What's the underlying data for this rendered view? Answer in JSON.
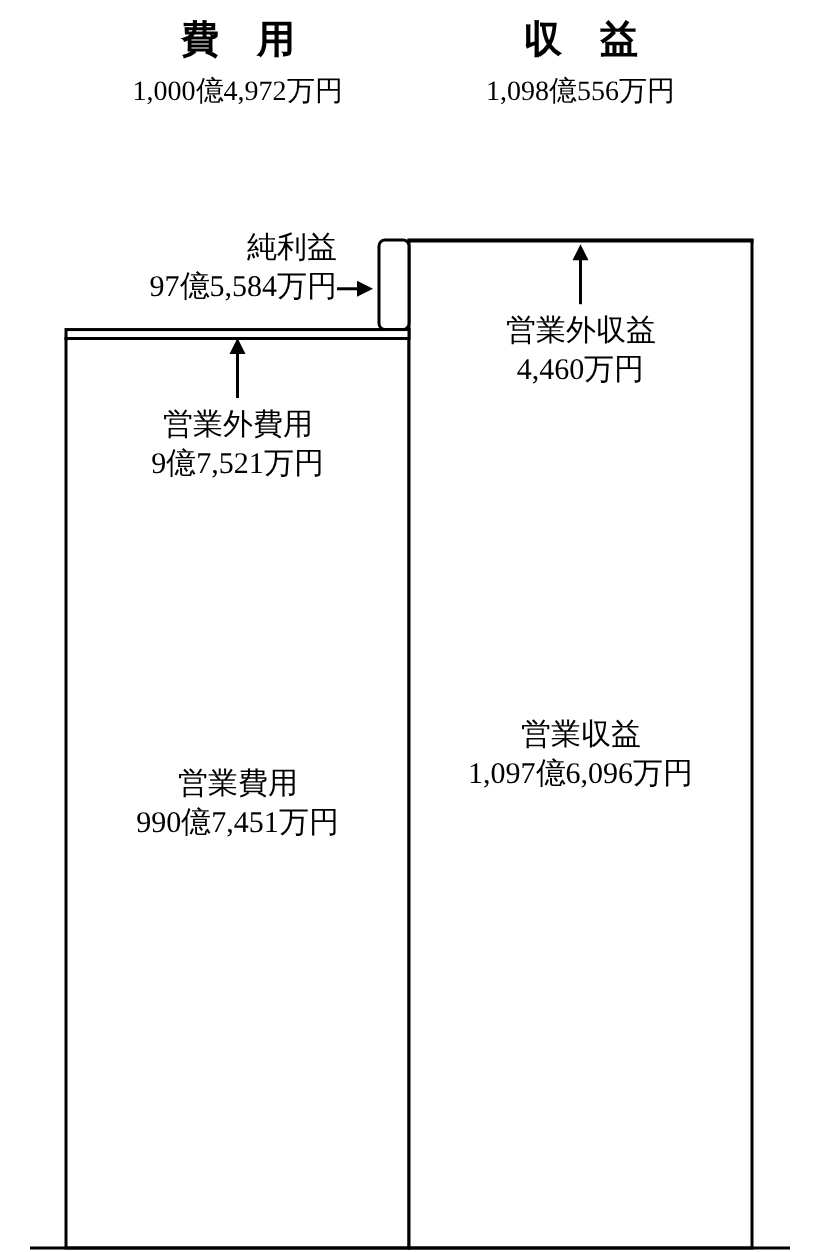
{
  "chart_data": {
    "type": "bar",
    "stacked": true,
    "categories": [
      "費　用",
      "収　益"
    ],
    "annotations": [
      "1,000億4,972万円",
      "1,098億556万円"
    ],
    "series": [
      {
        "color": "#ffffff",
        "values": [
          9907451,
          10976096
        ],
        "value_labels": [
          "営業費用\n990億7,451万円",
          "営業収益\n1,097億6,096万円"
        ]
      },
      {
        "color": "#ffffff",
        "values": [
          97521,
          4460
        ],
        "value_labels": [
          "営業外費用\n9億7,521万円",
          "営業外収益\n4,460万円"
        ]
      },
      {
        "color": "#ffffff",
        "values": [
          975584,
          null
        ],
        "value_labels": [
          "純利益\n97億5,584万円",
          null
        ]
      }
    ]
  }
}
